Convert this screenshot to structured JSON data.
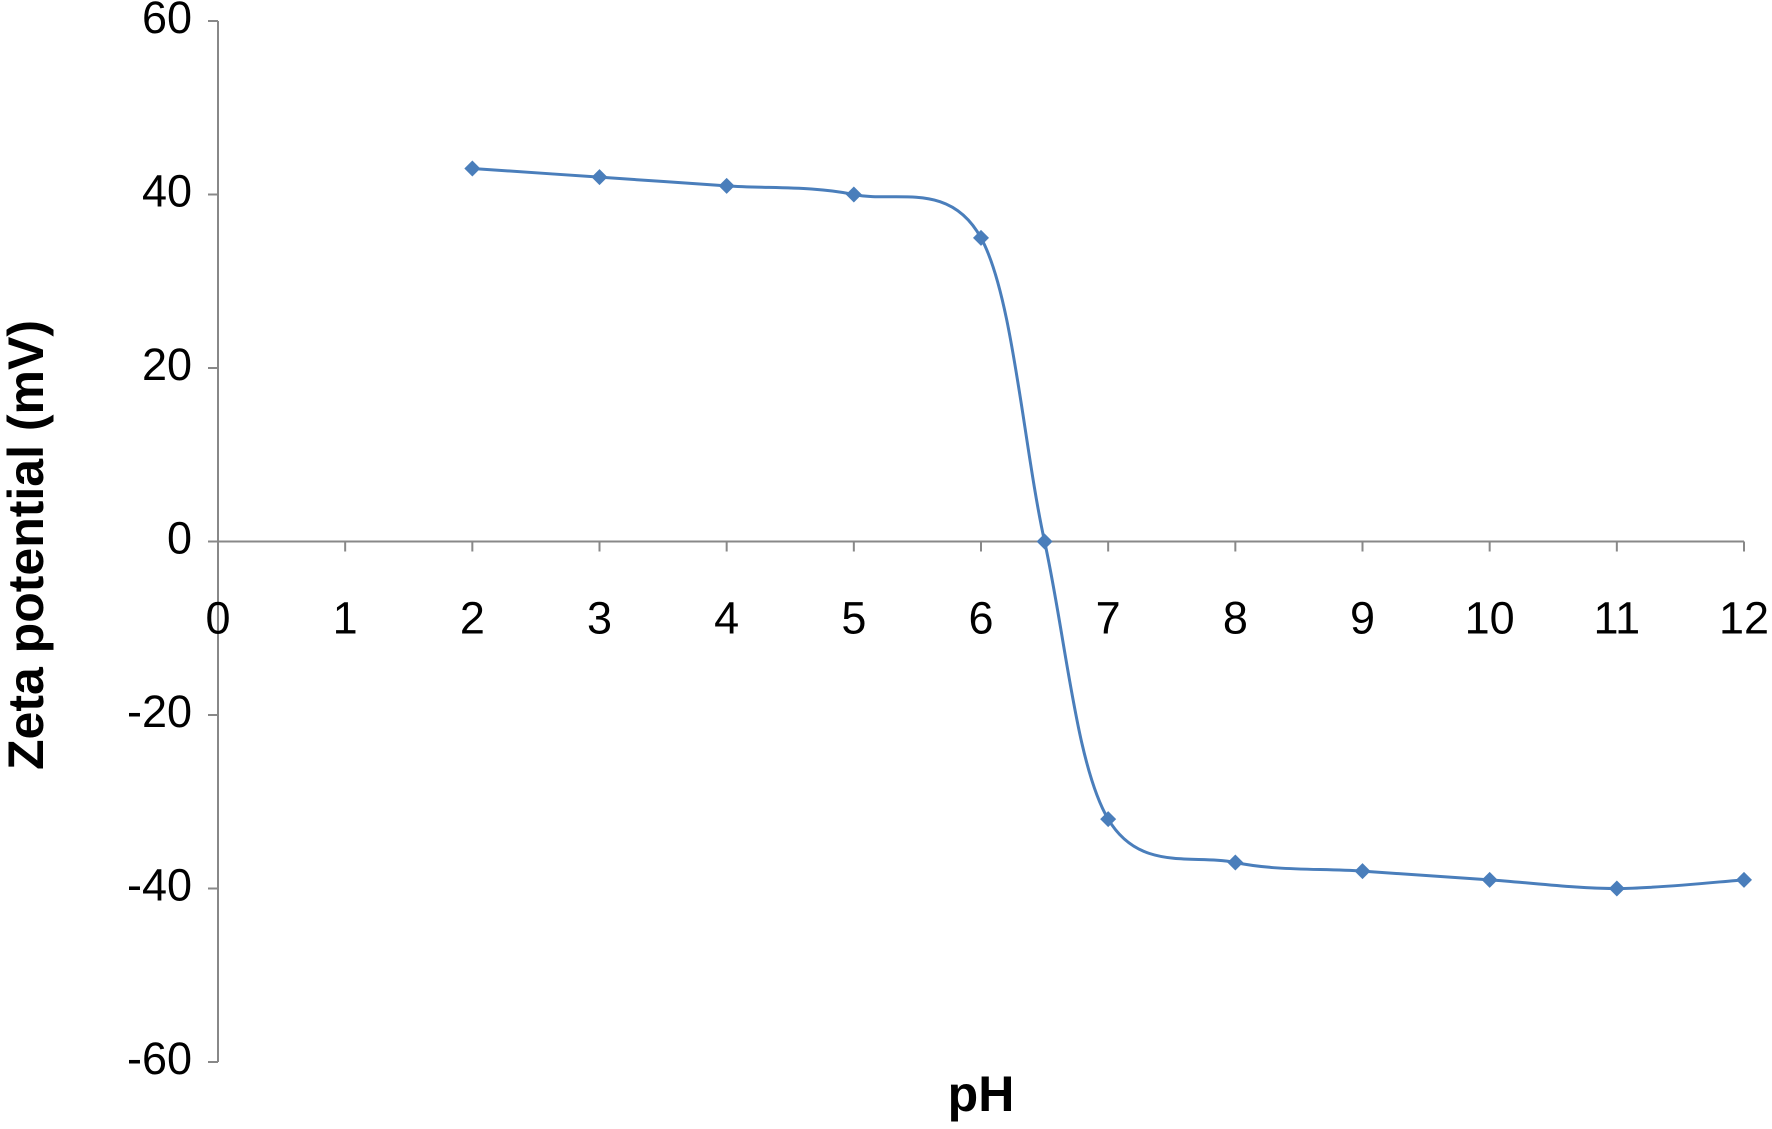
{
  "chart_data": {
    "type": "line",
    "x_label": "pH",
    "y_label": "Zeta potential (mV)",
    "x": [
      2,
      3,
      4,
      5,
      6,
      6.5,
      7,
      8,
      9,
      10,
      11,
      12
    ],
    "series": [
      {
        "name": "Zeta potential",
        "color": "#4a7ebb",
        "values": [
          43,
          42,
          41,
          40,
          35,
          0,
          -32,
          -37,
          -38,
          -39,
          -40,
          -39
        ]
      }
    ],
    "xlim": [
      0,
      12
    ],
    "xticks": [
      0,
      1,
      2,
      3,
      4,
      5,
      6,
      7,
      8,
      9,
      10,
      11,
      12
    ],
    "ylim": [
      -60,
      60
    ],
    "yticks": [
      -60,
      -40,
      -20,
      0,
      20,
      40,
      60
    ],
    "grid": false,
    "smooth": true,
    "marker": "diamond"
  }
}
